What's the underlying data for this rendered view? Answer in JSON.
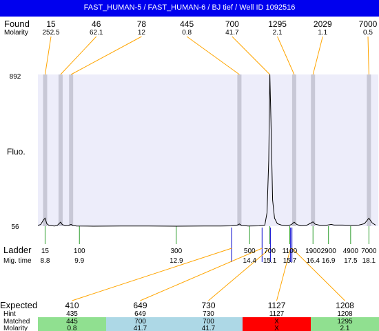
{
  "header": {
    "title": "FAST_HUMAN-5 / FAST_HUMAN-6 / BJ tief / Well ID 1092516"
  },
  "labels": {
    "found": "Found",
    "molarity": "Molarity",
    "fluo": "Fluo.",
    "ladder": "Ladder",
    "mig_time": "Mig. time",
    "expected": "Expected",
    "hint": "Hint",
    "matched": "Matched",
    "molarity_row": "Molarity"
  },
  "colors": {
    "header_bg": "#0000ee",
    "plot_bg": "#ededfa",
    "peak_band": "#c8c8d6",
    "found_line": "#ffa500",
    "ladder_tick": "#2e9e2e",
    "cross_line": "#0000cc",
    "match_ok": "#90e090",
    "match_shared": "#add8e6",
    "match_fail": "#ff0000"
  },
  "chart_data": {
    "type": "line",
    "title": "",
    "ylabel": "Fluo.",
    "ylim": [
      56,
      892
    ],
    "y_ticks": [
      "892",
      "56"
    ],
    "trace_min": [
      5,
      56
    ],
    "trace_max": [
      5,
      892
    ],
    "trace": [
      [
        0.0,
        60
      ],
      [
        1.0,
        65
      ],
      [
        2.0,
        90
      ],
      [
        2.6,
        100
      ],
      [
        3.2,
        70
      ],
      [
        4.0,
        60
      ],
      [
        6.0,
        57
      ],
      [
        7.0,
        60
      ],
      [
        8.2,
        78
      ],
      [
        8.8,
        65
      ],
      [
        10.0,
        58
      ],
      [
        11.0,
        60
      ],
      [
        12.0,
        66
      ],
      [
        12.6,
        60
      ],
      [
        14.0,
        57
      ],
      [
        20.0,
        56
      ],
      [
        30.0,
        57
      ],
      [
        40.0,
        57
      ],
      [
        50.0,
        56
      ],
      [
        60.0,
        57
      ],
      [
        66.0,
        57
      ],
      [
        70.0,
        58
      ],
      [
        72.0,
        62
      ],
      [
        72.8,
        68
      ],
      [
        73.6,
        60
      ],
      [
        76.0,
        57
      ],
      [
        80.0,
        58
      ],
      [
        82.0,
        62
      ],
      [
        82.8,
        130
      ],
      [
        83.4,
        420
      ],
      [
        83.8,
        892
      ],
      [
        84.2,
        640
      ],
      [
        84.8,
        200
      ],
      [
        85.5,
        100
      ],
      [
        86.5,
        70
      ],
      [
        88.0,
        62
      ],
      [
        90.0,
        58
      ],
      [
        91.5,
        64
      ],
      [
        92.6,
        78
      ],
      [
        93.6,
        65
      ],
      [
        95.0,
        58
      ],
      [
        97.0,
        60
      ],
      [
        98.6,
        73
      ],
      [
        99.4,
        80
      ],
      [
        100.2,
        67
      ],
      [
        102.0,
        60
      ],
      [
        104.0,
        60
      ],
      [
        106.0,
        66
      ],
      [
        107.0,
        62
      ],
      [
        110.0,
        62
      ],
      [
        113.0,
        61
      ],
      [
        116.0,
        62
      ],
      [
        118.0,
        70
      ],
      [
        119.6,
        100
      ],
      [
        120.8,
        74
      ],
      [
        122.0,
        62
      ]
    ],
    "found_peaks": [
      {
        "size": "15",
        "molarity": "252.5",
        "x": 2.6
      },
      {
        "size": "46",
        "molarity": "62.1",
        "x": 8.2
      },
      {
        "size": "78",
        "molarity": "12",
        "x": 12.0
      },
      {
        "size": "445",
        "molarity": "0.8",
        "x": 72.8
      },
      {
        "size": "700",
        "molarity": "41.7",
        "x": 83.8
      },
      {
        "size": "1295",
        "molarity": "2.1",
        "x": 92.6
      },
      {
        "size": "2029",
        "molarity": "1.1",
        "x": 99.4
      },
      {
        "size": "7000",
        "molarity": "0.5",
        "x": 119.6
      }
    ],
    "ladder": [
      {
        "size": "15",
        "mig_time": "8.8",
        "x": 2.6
      },
      {
        "size": "100",
        "mig_time": "9.9",
        "x": 15.0
      },
      {
        "size": "300",
        "mig_time": "12.9",
        "x": 50.0
      },
      {
        "size": "500",
        "mig_time": "14.4",
        "x": 76.5
      },
      {
        "size": "700",
        "mig_time": "15.1",
        "x": 83.8
      },
      {
        "size": "1100",
        "mig_time": "15.7",
        "x": 91.0
      },
      {
        "size": "1900",
        "mig_time": "16.4",
        "x": 99.4
      },
      {
        "size": "2900",
        "mig_time": "16.9",
        "x": 105.0
      },
      {
        "size": "4900",
        "mig_time": "17.5",
        "x": 113.0
      },
      {
        "size": "7000",
        "mig_time": "18.1",
        "x": 119.6
      }
    ],
    "xlim": [
      0,
      123
    ],
    "cross_links": [
      {
        "from_x": 70.0,
        "to_col": 0
      },
      {
        "from_x": 81.0,
        "to_col": 1
      },
      {
        "from_x": 84.0,
        "to_col": 2
      },
      {
        "from_x": 91.3,
        "to_col": 3
      },
      {
        "from_x": 91.8,
        "to_col": 4
      }
    ],
    "table": {
      "expected": [
        "410",
        "649",
        "730",
        "1127",
        "1208"
      ],
      "hint": [
        "435",
        "649",
        "730",
        "1127",
        "1208"
      ],
      "matched": [
        "445",
        "700",
        "700",
        "X",
        "1295"
      ],
      "molarity": [
        "0.8",
        "41.7",
        "41.7",
        "X",
        "2.1"
      ],
      "status": [
        "ok",
        "shared",
        "shared",
        "fail",
        "ok"
      ]
    }
  }
}
